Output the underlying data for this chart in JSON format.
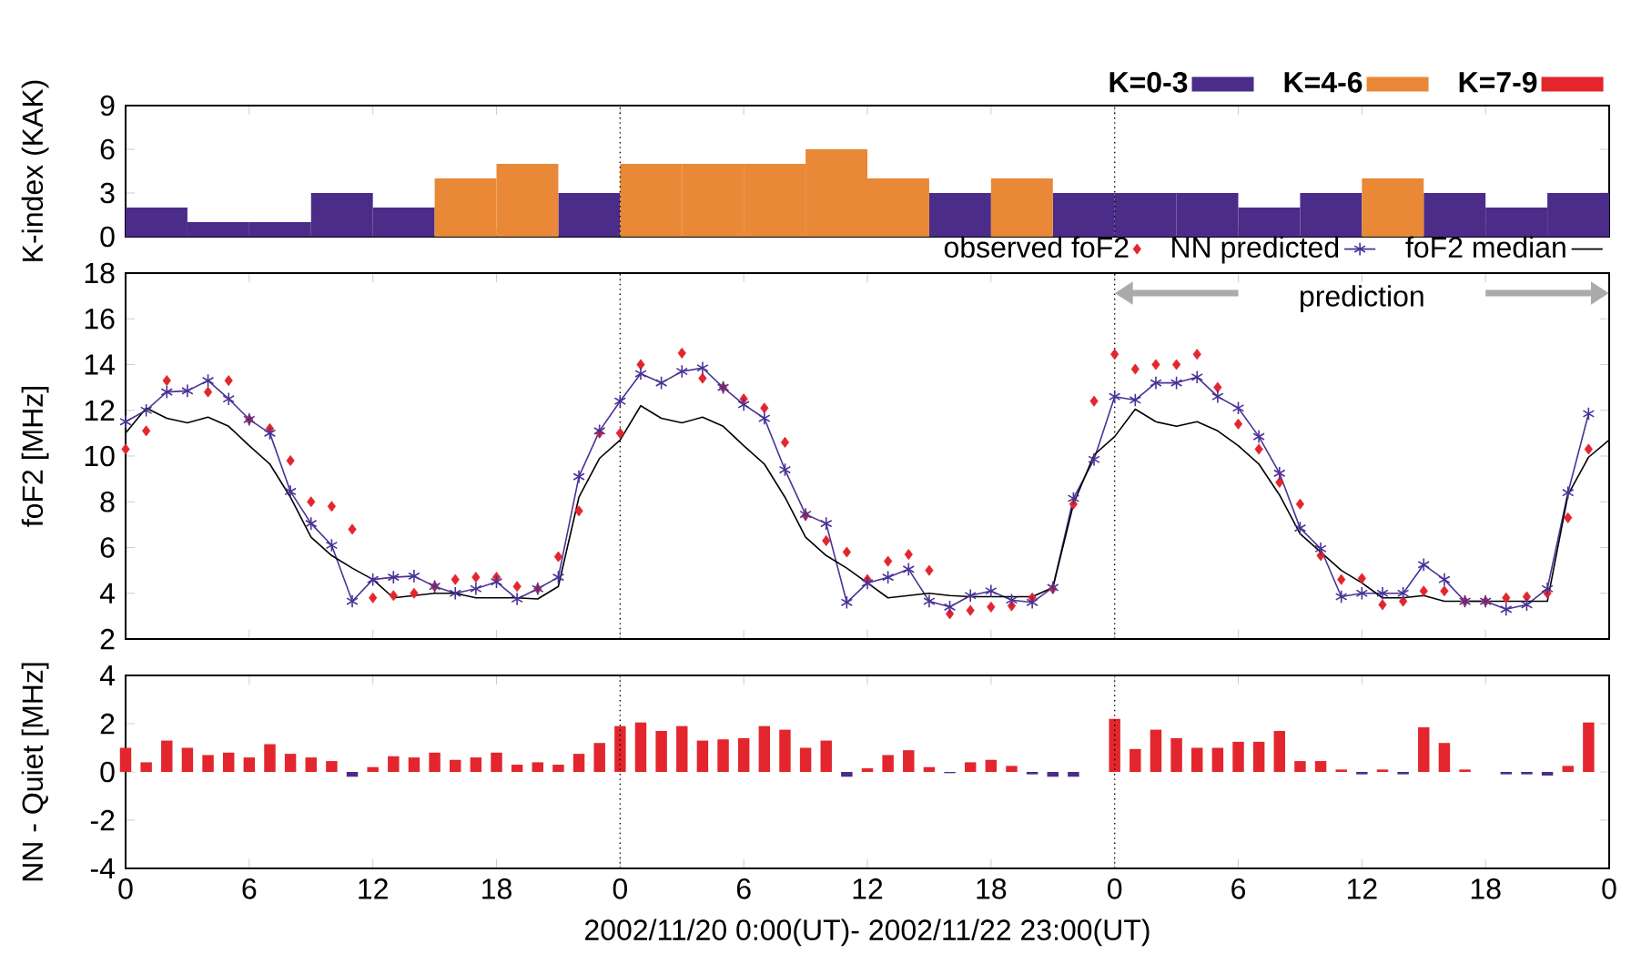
{
  "chart_data": [
    {
      "type": "bar",
      "ylabel": "K-index (KAK)",
      "x": [
        "2002-11-20T01:30",
        "2002-11-20T04:30",
        "2002-11-20T07:30",
        "2002-11-20T10:30",
        "2002-11-20T13:30",
        "2002-11-20T16:30",
        "2002-11-20T19:30",
        "2002-11-20T22:30",
        "2002-11-21T01:30",
        "2002-11-21T04:30",
        "2002-11-21T07:30",
        "2002-11-21T10:30",
        "2002-11-21T13:30",
        "2002-11-21T16:30",
        "2002-11-21T19:30",
        "2002-11-21T22:30",
        "2002-11-22T01:30",
        "2002-11-22T04:30",
        "2002-11-22T07:30",
        "2002-11-22T10:30",
        "2002-11-22T13:30",
        "2002-11-22T16:30",
        "2002-11-22T19:30",
        "2002-11-22T22:30"
      ],
      "series": [
        {
          "name": "K=0-3",
          "color": "#4b2c89",
          "values": [
            2,
            1,
            1,
            3,
            2,
            null,
            null,
            3,
            null,
            null,
            null,
            null,
            null,
            3,
            null,
            3,
            3,
            3,
            2,
            3,
            null,
            3,
            2,
            3
          ]
        },
        {
          "name": "K=4-6",
          "color": "#e98836",
          "values": [
            null,
            null,
            null,
            null,
            null,
            4,
            5,
            null,
            5,
            5,
            5,
            6,
            4,
            null,
            4,
            null,
            null,
            null,
            null,
            null,
            4,
            null,
            null,
            null
          ]
        },
        {
          "name": "K=7-9",
          "color": "#e3262e",
          "values": [
            null,
            null,
            null,
            null,
            null,
            null,
            null,
            null,
            null,
            null,
            null,
            null,
            null,
            null,
            null,
            null,
            null,
            null,
            null,
            null,
            null,
            null,
            null,
            null
          ]
        }
      ],
      "xlim": [
        "2002-11-20T00:00",
        "2002-11-23T00:00"
      ],
      "ylim": [
        0,
        9
      ],
      "yticks": [
        0,
        3,
        6,
        9
      ],
      "xticks": [
        {
          "value": "2002-11-20T00:00",
          "label": null
        },
        {
          "value": "2002-11-20T06:00",
          "label": null
        },
        {
          "value": "2002-11-20T12:00",
          "label": null
        },
        {
          "value": "2002-11-20T18:00",
          "label": null
        },
        {
          "value": "2002-11-21T00:00",
          "label": null
        },
        {
          "value": "2002-11-21T06:00",
          "label": null
        },
        {
          "value": "2002-11-21T12:00",
          "label": null
        },
        {
          "value": "2002-11-21T18:00",
          "label": null
        },
        {
          "value": "2002-11-22T00:00",
          "label": null
        },
        {
          "value": "2002-11-22T06:00",
          "label": null
        },
        {
          "value": "2002-11-22T12:00",
          "label": null
        },
        {
          "value": "2002-11-22T18:00",
          "label": null
        },
        {
          "value": "2002-11-23T00:00",
          "label": null
        }
      ],
      "tick_labels": "y",
      "legend": "top right",
      "ref_lines": [
        {
          "axis": "x",
          "value": "2002-11-21T00:00",
          "line_style": "dotted",
          "color": "#000000"
        },
        {
          "axis": "x",
          "value": "2002-11-22T00:00",
          "line_style": "dotted",
          "color": "#000000"
        }
      ]
    },
    {
      "type": "line",
      "ylabel": "foF2 [MHz]",
      "x": [
        "2002-11-20T00:00",
        "2002-11-20T01:00",
        "2002-11-20T02:00",
        "2002-11-20T03:00",
        "2002-11-20T04:00",
        "2002-11-20T05:00",
        "2002-11-20T06:00",
        "2002-11-20T07:00",
        "2002-11-20T08:00",
        "2002-11-20T09:00",
        "2002-11-20T10:00",
        "2002-11-20T11:00",
        "2002-11-20T12:00",
        "2002-11-20T13:00",
        "2002-11-20T14:00",
        "2002-11-20T15:00",
        "2002-11-20T16:00",
        "2002-11-20T17:00",
        "2002-11-20T18:00",
        "2002-11-20T19:00",
        "2002-11-20T20:00",
        "2002-11-20T21:00",
        "2002-11-20T22:00",
        "2002-11-20T23:00",
        "2002-11-21T00:00",
        "2002-11-21T01:00",
        "2002-11-21T02:00",
        "2002-11-21T03:00",
        "2002-11-21T04:00",
        "2002-11-21T05:00",
        "2002-11-21T06:00",
        "2002-11-21T07:00",
        "2002-11-21T08:00",
        "2002-11-21T09:00",
        "2002-11-21T10:00",
        "2002-11-21T11:00",
        "2002-11-21T12:00",
        "2002-11-21T13:00",
        "2002-11-21T14:00",
        "2002-11-21T15:00",
        "2002-11-21T16:00",
        "2002-11-21T17:00",
        "2002-11-21T18:00",
        "2002-11-21T19:00",
        "2002-11-21T20:00",
        "2002-11-21T21:00",
        "2002-11-21T22:00",
        "2002-11-21T23:00",
        "2002-11-22T00:00",
        "2002-11-22T01:00",
        "2002-11-22T02:00",
        "2002-11-22T03:00",
        "2002-11-22T04:00",
        "2002-11-22T05:00",
        "2002-11-22T06:00",
        "2002-11-22T07:00",
        "2002-11-22T08:00",
        "2002-11-22T09:00",
        "2002-11-22T10:00",
        "2002-11-22T11:00",
        "2002-11-22T12:00",
        "2002-11-22T13:00",
        "2002-11-22T14:00",
        "2002-11-22T15:00",
        "2002-11-22T16:00",
        "2002-11-22T17:00",
        "2002-11-22T18:00",
        "2002-11-22T19:00",
        "2002-11-22T20:00",
        "2002-11-22T21:00",
        "2002-11-22T22:00",
        "2002-11-22T23:00"
      ],
      "series": [
        {
          "name": "observed foF2",
          "type": "scatter",
          "marker": "diamond",
          "color": "#e3262e",
          "values": [
            10.3,
            11.1,
            13.3,
            null,
            12.8,
            13.3,
            11.6,
            11.2,
            9.8,
            8.0,
            7.8,
            6.8,
            3.8,
            3.9,
            4.0,
            4.3,
            4.6,
            4.7,
            4.7,
            4.3,
            4.2,
            5.6,
            7.6,
            11.0,
            11.0,
            14.0,
            null,
            14.5,
            13.4,
            13.0,
            12.5,
            12.1,
            10.6,
            7.4,
            6.3,
            5.8,
            4.6,
            5.4,
            5.7,
            5.0,
            3.1,
            3.25,
            3.4,
            3.45,
            3.8,
            4.2,
            7.9,
            12.4,
            14.45,
            13.8,
            14.0,
            14.0,
            14.45,
            13.0,
            11.4,
            10.3,
            8.85,
            7.9,
            5.65,
            4.6,
            4.65,
            3.5,
            3.65,
            4.1,
            4.1,
            3.65,
            3.65,
            3.8,
            3.85,
            4.0,
            7.3,
            10.3
          ]
        },
        {
          "name": "NN predicted",
          "type": "line",
          "marker": "cross",
          "line_style": "solid",
          "color": "#4b3296",
          "values": [
            11.5,
            12.0,
            12.8,
            12.85,
            13.3,
            12.5,
            11.6,
            11.0,
            8.45,
            7.05,
            6.1,
            3.65,
            4.6,
            4.7,
            4.75,
            4.3,
            4.0,
            4.2,
            4.5,
            3.75,
            4.2,
            4.7,
            9.1,
            11.1,
            12.4,
            13.6,
            13.2,
            13.7,
            13.85,
            13.0,
            12.25,
            11.65,
            9.4,
            7.45,
            7.05,
            3.6,
            4.45,
            4.7,
            5.05,
            3.65,
            3.4,
            3.9,
            4.1,
            3.7,
            3.6,
            4.25,
            8.15,
            9.85,
            12.6,
            12.45,
            13.2,
            13.2,
            13.45,
            12.6,
            12.1,
            10.85,
            9.25,
            6.85,
            5.95,
            3.85,
            4.0,
            4.0,
            4.0,
            5.25,
            4.6,
            3.65,
            3.65,
            3.3,
            3.5,
            4.2,
            8.4,
            11.85
          ]
        },
        {
          "name": "foF2 median",
          "type": "line",
          "marker": "none",
          "line_style": "solid",
          "color": "#000000",
          "x": [
            "2002-11-20T00:00",
            "2002-11-20T01:00",
            "2002-11-20T02:00",
            "2002-11-20T03:00",
            "2002-11-20T04:00",
            "2002-11-20T05:00",
            "2002-11-20T06:00",
            "2002-11-20T07:00",
            "2002-11-20T08:00",
            "2002-11-20T09:00",
            "2002-11-20T10:00",
            "2002-11-20T11:00",
            "2002-11-20T12:00",
            "2002-11-20T13:00",
            "2002-11-20T14:00",
            "2002-11-20T15:00",
            "2002-11-20T16:00",
            "2002-11-20T17:00",
            "2002-11-20T18:00",
            "2002-11-20T19:00",
            "2002-11-20T20:00",
            "2002-11-20T21:00",
            "2002-11-20T22:00",
            "2002-11-20T23:00",
            "2002-11-21T00:00",
            "2002-11-21T01:00",
            "2002-11-21T02:00",
            "2002-11-21T03:00",
            "2002-11-21T04:00",
            "2002-11-21T05:00",
            "2002-11-21T06:00",
            "2002-11-21T07:00",
            "2002-11-21T08:00",
            "2002-11-21T09:00",
            "2002-11-21T10:00",
            "2002-11-21T11:00",
            "2002-11-21T12:00",
            "2002-11-21T13:00",
            "2002-11-21T14:00",
            "2002-11-21T15:00",
            "2002-11-21T16:00",
            "2002-11-21T17:00",
            "2002-11-21T18:00",
            "2002-11-21T19:00",
            "2002-11-21T20:00",
            "2002-11-21T21:00",
            "2002-11-21T22:00",
            "2002-11-21T23:00",
            "2002-11-22T00:00",
            "2002-11-22T01:00",
            "2002-11-22T02:00",
            "2002-11-22T03:00",
            "2002-11-22T04:00",
            "2002-11-22T05:00",
            "2002-11-22T06:00",
            "2002-11-22T07:00",
            "2002-11-22T08:00",
            "2002-11-22T09:00",
            "2002-11-22T10:00",
            "2002-11-22T11:00",
            "2002-11-22T12:00",
            "2002-11-22T13:00",
            "2002-11-22T14:00",
            "2002-11-22T15:00",
            "2002-11-22T16:00",
            "2002-11-22T17:00",
            "2002-11-22T18:00",
            "2002-11-22T19:00",
            "2002-11-22T20:00",
            "2002-11-22T21:00",
            "2002-11-22T22:00",
            "2002-11-22T23:00",
            "2002-11-23T00:00"
          ],
          "values": [
            11.0,
            12.1,
            11.65,
            11.45,
            11.7,
            11.3,
            10.45,
            9.65,
            8.2,
            6.45,
            5.65,
            5.1,
            4.6,
            3.8,
            3.9,
            4.0,
            4.0,
            3.8,
            3.8,
            3.8,
            3.75,
            4.3,
            8.2,
            9.9,
            10.7,
            12.2,
            11.65,
            11.45,
            11.7,
            11.3,
            10.45,
            9.65,
            8.2,
            6.45,
            5.65,
            5.1,
            4.45,
            3.8,
            3.9,
            4.0,
            3.9,
            3.85,
            3.85,
            3.85,
            3.85,
            4.25,
            7.9,
            10.05,
            10.85,
            12.05,
            11.5,
            11.3,
            11.5,
            11.1,
            10.45,
            9.65,
            8.3,
            6.6,
            5.8,
            5.0,
            4.45,
            3.8,
            3.8,
            3.9,
            3.65,
            3.65,
            3.65,
            3.65,
            3.65,
            3.65,
            8.3,
            9.95,
            10.7
          ]
        }
      ],
      "xlim": [
        "2002-11-20T00:00",
        "2002-11-23T00:00"
      ],
      "ylim": [
        2,
        18
      ],
      "yticks": [
        2,
        4,
        6,
        8,
        10,
        12,
        14,
        16,
        18
      ],
      "xticks": [
        {
          "value": "2002-11-20T00:00",
          "label": null
        },
        {
          "value": "2002-11-20T06:00",
          "label": null
        },
        {
          "value": "2002-11-20T12:00",
          "label": null
        },
        {
          "value": "2002-11-20T18:00",
          "label": null
        },
        {
          "value": "2002-11-21T00:00",
          "label": null
        },
        {
          "value": "2002-11-21T06:00",
          "label": null
        },
        {
          "value": "2002-11-21T12:00",
          "label": null
        },
        {
          "value": "2002-11-21T18:00",
          "label": null
        },
        {
          "value": "2002-11-22T00:00",
          "label": null
        },
        {
          "value": "2002-11-22T06:00",
          "label": null
        },
        {
          "value": "2002-11-22T12:00",
          "label": null
        },
        {
          "value": "2002-11-22T18:00",
          "label": null
        },
        {
          "value": "2002-11-23T00:00",
          "label": null
        }
      ],
      "tick_labels": "y",
      "legend": "top right",
      "annotations": [
        "prediction"
      ],
      "ref_lines": [
        {
          "axis": "x",
          "value": "2002-11-21T00:00",
          "line_style": "dotted",
          "color": "#000000"
        },
        {
          "axis": "x",
          "value": "2002-11-22T00:00",
          "line_style": "dotted",
          "color": "#000000"
        }
      ]
    },
    {
      "type": "bar",
      "ylabel": "NN - Quiet [MHz]",
      "xlabel": "2002/11/20 0:00(UT)- 2002/11/22 23:00(UT)",
      "x": [
        "2002-11-20T00:00",
        "2002-11-20T01:00",
        "2002-11-20T02:00",
        "2002-11-20T03:00",
        "2002-11-20T04:00",
        "2002-11-20T05:00",
        "2002-11-20T06:00",
        "2002-11-20T07:00",
        "2002-11-20T08:00",
        "2002-11-20T09:00",
        "2002-11-20T10:00",
        "2002-11-20T11:00",
        "2002-11-20T12:00",
        "2002-11-20T13:00",
        "2002-11-20T14:00",
        "2002-11-20T15:00",
        "2002-11-20T16:00",
        "2002-11-20T17:00",
        "2002-11-20T18:00",
        "2002-11-20T19:00",
        "2002-11-20T20:00",
        "2002-11-20T21:00",
        "2002-11-20T22:00",
        "2002-11-20T23:00",
        "2002-11-21T00:00",
        "2002-11-21T01:00",
        "2002-11-21T02:00",
        "2002-11-21T03:00",
        "2002-11-21T04:00",
        "2002-11-21T05:00",
        "2002-11-21T06:00",
        "2002-11-21T07:00",
        "2002-11-21T08:00",
        "2002-11-21T09:00",
        "2002-11-21T10:00",
        "2002-11-21T11:00",
        "2002-11-21T12:00",
        "2002-11-21T13:00",
        "2002-11-21T14:00",
        "2002-11-21T15:00",
        "2002-11-21T16:00",
        "2002-11-21T17:00",
        "2002-11-21T18:00",
        "2002-11-21T19:00",
        "2002-11-21T20:00",
        "2002-11-21T21:00",
        "2002-11-21T22:00",
        "2002-11-21T23:00",
        "2002-11-22T00:00",
        "2002-11-22T01:00",
        "2002-11-22T02:00",
        "2002-11-22T03:00",
        "2002-11-22T04:00",
        "2002-11-22T05:00",
        "2002-11-22T06:00",
        "2002-11-22T07:00",
        "2002-11-22T08:00",
        "2002-11-22T09:00",
        "2002-11-22T10:00",
        "2002-11-22T11:00",
        "2002-11-22T12:00",
        "2002-11-22T13:00",
        "2002-11-22T14:00",
        "2002-11-22T15:00",
        "2002-11-22T16:00",
        "2002-11-22T17:00",
        "2002-11-22T18:00",
        "2002-11-22T19:00",
        "2002-11-22T20:00",
        "2002-11-22T21:00",
        "2002-11-22T22:00",
        "2002-11-22T23:00"
      ],
      "values": [
        1.0,
        0.4,
        1.3,
        1.0,
        0.7,
        0.8,
        0.6,
        1.15,
        0.75,
        0.6,
        0.45,
        -0.2,
        0.2,
        0.65,
        0.6,
        0.8,
        0.5,
        0.6,
        0.8,
        0.3,
        0.4,
        0.3,
        0.75,
        1.2,
        1.9,
        2.05,
        1.7,
        1.9,
        1.3,
        1.35,
        1.4,
        1.9,
        1.75,
        1.0,
        1.3,
        -0.2,
        0.15,
        0.7,
        0.9,
        0.2,
        -0.05,
        0.4,
        0.5,
        0.25,
        -0.1,
        -0.2,
        -0.2,
        0,
        2.2,
        0.95,
        1.75,
        1.4,
        1.0,
        1.0,
        1.25,
        1.25,
        1.7,
        0.45,
        0.45,
        0.1,
        -0.1,
        0.1,
        -0.1,
        1.85,
        1.2,
        0.1,
        0,
        -0.1,
        -0.1,
        -0.15,
        0.25,
        2.05
      ],
      "colors": [
        "#e3262e",
        "#e3262e",
        "#e3262e",
        "#e3262e",
        "#e3262e",
        "#e3262e",
        "#e3262e",
        "#e3262e",
        "#e3262e",
        "#e3262e",
        "#e3262e",
        "#4b2c89",
        "#e3262e",
        "#e3262e",
        "#e3262e",
        "#e3262e",
        "#e3262e",
        "#e3262e",
        "#e3262e",
        "#e3262e",
        "#e3262e",
        "#e3262e",
        "#e3262e",
        "#e3262e",
        "#e3262e",
        "#e3262e",
        "#e3262e",
        "#e3262e",
        "#e3262e",
        "#e3262e",
        "#e3262e",
        "#e3262e",
        "#e3262e",
        "#e3262e",
        "#e3262e",
        "#4b2c89",
        "#e3262e",
        "#e3262e",
        "#e3262e",
        "#e3262e",
        "#4b2c89",
        "#e3262e",
        "#e3262e",
        "#e3262e",
        "#4b2c89",
        "#4b2c89",
        "#4b2c89",
        "#e3262e",
        "#e3262e",
        "#e3262e",
        "#e3262e",
        "#e3262e",
        "#e3262e",
        "#e3262e",
        "#e3262e",
        "#e3262e",
        "#e3262e",
        "#e3262e",
        "#e3262e",
        "#e3262e",
        "#4b2c89",
        "#e3262e",
        "#4b2c89",
        "#e3262e",
        "#e3262e",
        "#e3262e",
        "#e3262e",
        "#4b2c89",
        "#4b2c89",
        "#4b2c89",
        "#e3262e",
        "#e3262e"
      ],
      "xlim": [
        "2002-11-20T00:00",
        "2002-11-23T00:00"
      ],
      "ylim": [
        -4,
        4
      ],
      "yticks": [
        -4,
        -2,
        0,
        2,
        4
      ],
      "xticks": [
        {
          "value": "2002-11-20T00:00",
          "label": "0"
        },
        {
          "value": "2002-11-20T06:00",
          "label": "6"
        },
        {
          "value": "2002-11-20T12:00",
          "label": "12"
        },
        {
          "value": "2002-11-20T18:00",
          "label": "18"
        },
        {
          "value": "2002-11-21T00:00",
          "label": "0"
        },
        {
          "value": "2002-11-21T06:00",
          "label": "6"
        },
        {
          "value": "2002-11-21T12:00",
          "label": "12"
        },
        {
          "value": "2002-11-21T18:00",
          "label": "18"
        },
        {
          "value": "2002-11-22T00:00",
          "label": "0"
        },
        {
          "value": "2002-11-22T06:00",
          "label": "6"
        },
        {
          "value": "2002-11-22T12:00",
          "label": "12"
        },
        {
          "value": "2002-11-22T18:00",
          "label": "18"
        },
        {
          "value": "2002-11-23T00:00",
          "label": "0"
        }
      ],
      "ref_lines": [
        {
          "axis": "x",
          "value": "2002-11-21T00:00",
          "line_style": "dotted",
          "color": "#000000"
        },
        {
          "axis": "x",
          "value": "2002-11-22T00:00",
          "line_style": "dotted",
          "color": "#000000"
        }
      ]
    }
  ]
}
